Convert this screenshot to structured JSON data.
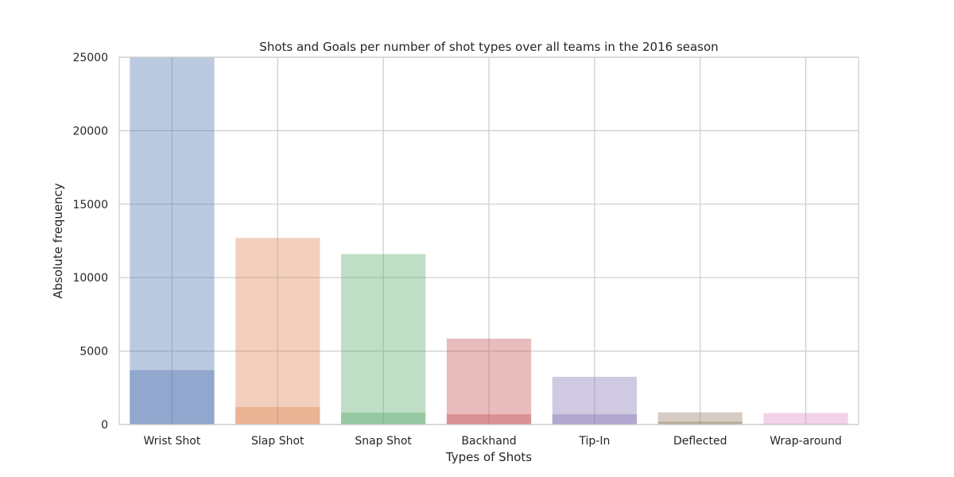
{
  "chart_data": {
    "type": "bar",
    "title": "Shots and Goals per number of shot types over all teams in the 2016 season",
    "xlabel": "Types of Shots",
    "ylabel": "Absolute frequency",
    "categories": [
      "Wrist Shot",
      "Slap Shot",
      "Snap Shot",
      "Backhand",
      "Tip-In",
      "Deflected",
      "Wrap-around"
    ],
    "series": [
      {
        "values": [
          25000,
          12700,
          11600,
          5850,
          3250,
          830,
          780
        ]
      },
      {
        "values": [
          3700,
          1200,
          800,
          700,
          700,
          200,
          60
        ]
      }
    ],
    "ylim": [
      0,
      25000
    ],
    "yticks": [
      0,
      5000,
      10000,
      15000,
      20000,
      25000
    ],
    "grid": true,
    "colors": [
      "#4c72b0",
      "#dd8452",
      "#55a868",
      "#c44e52",
      "#8172b3",
      "#937860",
      "#da8bc3"
    ]
  }
}
